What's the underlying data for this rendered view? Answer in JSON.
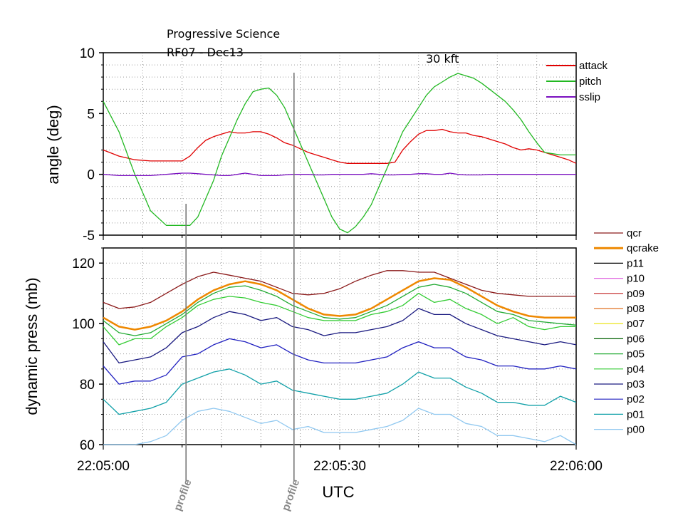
{
  "header": {
    "title": "Progressive Science",
    "flight": "RF07 - Dec13",
    "altitude_note": "30 kft"
  },
  "chart_data": [
    {
      "type": "line",
      "panel": "top",
      "ylabel": "angle (deg)",
      "ylim": [
        -5,
        10
      ],
      "xlim": [
        0,
        60
      ],
      "yticks": [
        -5,
        0,
        5,
        10
      ],
      "ytick_labels": [
        "-5",
        "0",
        "5",
        "10"
      ],
      "grid": true,
      "legend": "top-right",
      "x": [
        0,
        2,
        4,
        6,
        8,
        10,
        11,
        12,
        13,
        14,
        15,
        16,
        17,
        18,
        19,
        20,
        21,
        22,
        23,
        24,
        25,
        26,
        27,
        28,
        29,
        30,
        31,
        32,
        33,
        34,
        35,
        36,
        37,
        38,
        39,
        40,
        41,
        42,
        43,
        44,
        45,
        46,
        47,
        48,
        49,
        50,
        51,
        52,
        53,
        54,
        55,
        56,
        57,
        58,
        59,
        60
      ],
      "series": [
        {
          "name": "attack",
          "color": "#e00000",
          "values": [
            2,
            1.5,
            1.2,
            1.1,
            1.1,
            1.1,
            1.5,
            2.2,
            2.8,
            3.1,
            3.3,
            3.5,
            3.4,
            3.4,
            3.5,
            3.5,
            3.3,
            3.0,
            2.6,
            2.4,
            2.1,
            1.8,
            1.6,
            1.4,
            1.2,
            1.0,
            0.9,
            0.9,
            0.9,
            0.9,
            0.9,
            0.9,
            1.0,
            2.0,
            2.7,
            3.3,
            3.6,
            3.6,
            3.7,
            3.5,
            3.4,
            3.4,
            3.2,
            3.1,
            2.9,
            2.7,
            2.5,
            2.2,
            2.0,
            2.1,
            2.0,
            1.8,
            1.6,
            1.4,
            1.2,
            0.9
          ]
        },
        {
          "name": "pitch",
          "color": "#22b822",
          "values": [
            6,
            3.5,
            0,
            -3,
            -4.2,
            -4.2,
            -4.2,
            -3.5,
            -2,
            -0.5,
            1.5,
            3,
            4.5,
            5.8,
            6.8,
            7,
            7.1,
            6.5,
            5.5,
            4,
            2.5,
            1,
            -0.5,
            -2,
            -3.5,
            -4.5,
            -4.8,
            -4.3,
            -3.5,
            -2.5,
            -1,
            0.5,
            2,
            3.5,
            4.5,
            5.5,
            6.5,
            7.2,
            7.6,
            8,
            8.3,
            8.1,
            7.9,
            7.5,
            7.0,
            6.5,
            6.0,
            5.3,
            4.5,
            3.5,
            2.6,
            1.8,
            1.7,
            1.6,
            1.6,
            1.6
          ]
        },
        {
          "name": "sslip",
          "color": "#7a10c0",
          "values": [
            0,
            -0.1,
            -0.1,
            -0.1,
            0,
            0.1,
            0.1,
            0.05,
            0,
            -0.05,
            -0.1,
            -0.1,
            0,
            0.1,
            0,
            -0.1,
            -0.1,
            -0.1,
            -0.05,
            0,
            0,
            0,
            -0.05,
            -0.05,
            0,
            0,
            0,
            0,
            0,
            0.05,
            0,
            -0.05,
            -0.05,
            0,
            0,
            0.05,
            0.05,
            0,
            0,
            0.1,
            0,
            -0.05,
            -0.05,
            -0.05,
            0,
            0,
            0,
            0,
            0,
            0,
            0,
            0,
            0,
            0,
            0,
            0
          ]
        }
      ]
    },
    {
      "type": "line",
      "panel": "bottom",
      "ylabel": "dynamic press (mb)",
      "xlabel": "UTC",
      "ylim": [
        60,
        125
      ],
      "xlim": [
        0,
        60
      ],
      "yticks": [
        60,
        80,
        100,
        120
      ],
      "ytick_labels": [
        "60",
        "80",
        "100",
        "120"
      ],
      "xticks": [
        0,
        30,
        60
      ],
      "xtick_labels": [
        "22:05:00",
        "22:05:30",
        "22:06:00"
      ],
      "grid": true,
      "legend": "right",
      "x": [
        0,
        2,
        4,
        6,
        8,
        10,
        12,
        14,
        16,
        18,
        20,
        22,
        24,
        26,
        28,
        30,
        32,
        34,
        36,
        38,
        40,
        42,
        44,
        46,
        48,
        50,
        52,
        54,
        56,
        58,
        60
      ],
      "series": [
        {
          "name": "qcr",
          "color": "#8b1a1a",
          "values": [
            107,
            105,
            105.5,
            107,
            110,
            113,
            115.5,
            117,
            116,
            115,
            114,
            112,
            110,
            109.5,
            110,
            111.5,
            114,
            116,
            117.5,
            117.5,
            117,
            117,
            115,
            113,
            111,
            110,
            109.5,
            109,
            109,
            109,
            109
          ]
        },
        {
          "name": "qcrake",
          "color": "#ee8800",
          "width": 2.5,
          "values": [
            102,
            99,
            98,
            99,
            101,
            104,
            108,
            111,
            113,
            114,
            113,
            111,
            108,
            105,
            103,
            102.5,
            103,
            105,
            108,
            111,
            114,
            115,
            114.5,
            112,
            109,
            106,
            104,
            102.5,
            102,
            102,
            102
          ]
        },
        {
          "name": "p11",
          "color": "#000000",
          "values": [
            102,
            99,
            98,
            99,
            101,
            104,
            108,
            111,
            113,
            114,
            113,
            111,
            108,
            105,
            103,
            102.5,
            103,
            105,
            108,
            111,
            114,
            115,
            114.5,
            112,
            109,
            106,
            104,
            102.5,
            102,
            102,
            102
          ]
        },
        {
          "name": "p10",
          "color": "#e066e0",
          "values": [
            102,
            99,
            98,
            99,
            101,
            104,
            108,
            111,
            113,
            114,
            113,
            111,
            108,
            105,
            103,
            102.5,
            103,
            105,
            108,
            111,
            114,
            115,
            114.5,
            112,
            109,
            106,
            104,
            102.5,
            102,
            102,
            102
          ]
        },
        {
          "name": "p09",
          "color": "#c02020",
          "values": [
            102,
            99,
            98,
            99,
            101,
            104,
            108,
            111,
            113,
            114,
            113,
            111,
            108,
            105,
            103,
            102.5,
            103,
            105,
            108,
            111,
            114,
            115,
            114.5,
            112,
            109,
            106,
            104,
            102.5,
            102,
            102,
            102
          ]
        },
        {
          "name": "p08",
          "color": "#e07020",
          "values": [
            102,
            99,
            98,
            99,
            101,
            104,
            108,
            111,
            113,
            114,
            113,
            111,
            108,
            105,
            103,
            102.5,
            103,
            105,
            108,
            111,
            114,
            115,
            114.5,
            112,
            109,
            106,
            104,
            102.5,
            102,
            102,
            102
          ]
        },
        {
          "name": "p07",
          "color": "#e8e000",
          "values": [
            102,
            99,
            98,
            99,
            101,
            104,
            108,
            111,
            113,
            114,
            113,
            111,
            108,
            105,
            103,
            102.5,
            103,
            105,
            108,
            111,
            114,
            115,
            114.5,
            112,
            109,
            106,
            104,
            102.5,
            102,
            102,
            102
          ]
        },
        {
          "name": "p06",
          "color": "#006000",
          "values": [
            102,
            99,
            98,
            99,
            101,
            104,
            108,
            111,
            113,
            114,
            113,
            111,
            108,
            105,
            103,
            102.5,
            103,
            105,
            108,
            111,
            114,
            115,
            114.5,
            112,
            109,
            106,
            104,
            102.5,
            102,
            102,
            102
          ]
        },
        {
          "name": "p05",
          "color": "#22aa33",
          "values": [
            101,
            97,
            96,
            97,
            100,
            103,
            107,
            110,
            112,
            112.5,
            111,
            109,
            106,
            104,
            102,
            101.5,
            102,
            104,
            106,
            109,
            112,
            113,
            112,
            110,
            107,
            104,
            103,
            101,
            100.5,
            100,
            99.5
          ]
        },
        {
          "name": "p04",
          "color": "#33cc33",
          "values": [
            99,
            93,
            95,
            95,
            99,
            102,
            106,
            108,
            109,
            108.5,
            107,
            106,
            104,
            102,
            101,
            101,
            101,
            103,
            104,
            106,
            110,
            107,
            108,
            105,
            103,
            100,
            102,
            99,
            98,
            99,
            99
          ]
        },
        {
          "name": "p03",
          "color": "#1a1a80",
          "values": [
            94,
            87,
            88,
            89,
            92,
            97,
            99,
            102,
            104,
            103,
            101,
            102,
            99,
            98,
            96,
            97,
            97,
            98,
            99,
            101,
            105,
            103,
            103,
            100,
            98,
            96,
            95,
            94,
            93,
            94,
            93
          ]
        },
        {
          "name": "p02",
          "color": "#2020c0",
          "values": [
            86,
            80,
            81,
            81,
            83,
            89,
            90,
            93,
            95,
            94,
            92,
            93,
            90,
            88,
            87,
            87,
            87,
            88,
            89,
            92,
            94,
            92,
            92,
            89,
            88,
            86,
            86,
            85,
            85,
            86,
            85
          ]
        },
        {
          "name": "p01",
          "color": "#10a0a8",
          "values": [
            75,
            70,
            71,
            72,
            74,
            80,
            82,
            84,
            85,
            83,
            80,
            81,
            78,
            77,
            76,
            75,
            75,
            76,
            77,
            80,
            84,
            82,
            82,
            79,
            77,
            74,
            74,
            73,
            73,
            76,
            74
          ]
        },
        {
          "name": "p00",
          "color": "#90c8f0",
          "values": [
            60,
            60,
            60,
            61,
            63,
            68,
            71,
            72,
            71,
            69,
            67,
            68,
            65,
            66,
            64,
            64,
            64,
            65,
            66,
            68,
            72,
            70,
            70,
            67,
            66,
            63,
            63,
            62,
            61,
            63,
            60
          ]
        }
      ],
      "annotations": [
        {
          "label": "profile",
          "x": 10.5
        },
        {
          "label": "profile",
          "x": 24.2
        }
      ]
    }
  ]
}
